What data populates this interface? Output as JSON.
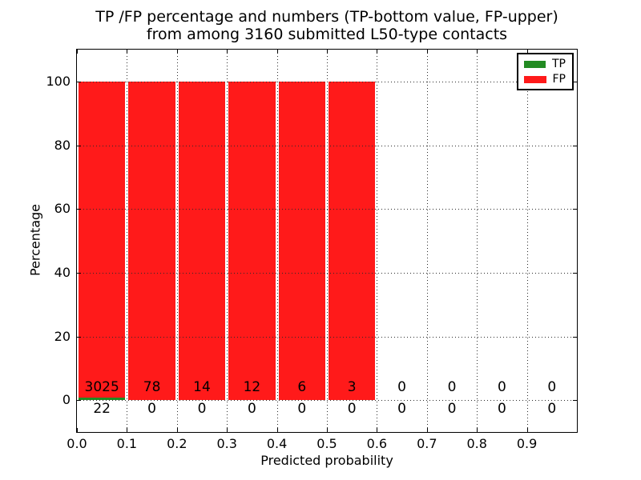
{
  "chart_data": {
    "type": "bar",
    "title_line1": "TP /FP percentage and numbers (TP-bottom value, FP-upper)",
    "title_line2": "from among 3160 submitted L50-type contacts",
    "xlabel": "Predicted probability",
    "ylabel": "Percentage",
    "xlim": [
      0.0,
      1.0
    ],
    "ylim": [
      -10,
      110
    ],
    "xticks": [
      "0.0",
      "0.1",
      "0.2",
      "0.3",
      "0.4",
      "0.5",
      "0.6",
      "0.7",
      "0.8",
      "0.9"
    ],
    "yticks": [
      "0",
      "20",
      "40",
      "60",
      "80",
      "100"
    ],
    "ytick_values": [
      0,
      20,
      40,
      60,
      80,
      100
    ],
    "bin_starts": [
      0.0,
      0.1,
      0.2,
      0.3,
      0.4,
      0.5,
      0.6,
      0.7,
      0.8,
      0.9
    ],
    "bin_width": 0.1,
    "grid": "dotted",
    "legend_position": "upper right",
    "total_contacts": 3160,
    "series": [
      {
        "name": "TP",
        "color": "#228b22",
        "percent": [
          0.722,
          0,
          0,
          0,
          0,
          0,
          0,
          0,
          0,
          0
        ],
        "counts": [
          22,
          0,
          0,
          0,
          0,
          0,
          0,
          0,
          0,
          0
        ]
      },
      {
        "name": "FP",
        "color": "#ff1a1a",
        "percent": [
          99.278,
          100,
          100,
          100,
          100,
          100,
          0,
          0,
          0,
          0
        ],
        "counts": [
          3025,
          78,
          14,
          12,
          6,
          3,
          0,
          0,
          0,
          0
        ]
      }
    ]
  }
}
